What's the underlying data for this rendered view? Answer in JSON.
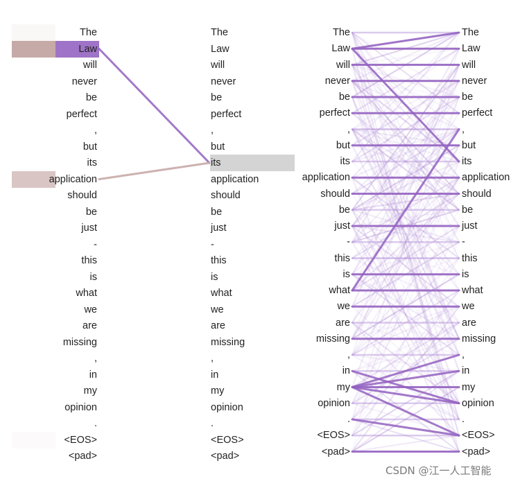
{
  "tokens": [
    "The",
    "Law",
    "will",
    "never",
    "be",
    "perfect",
    ",",
    "but",
    "its",
    "application",
    "should",
    "be",
    "just",
    "-",
    "this",
    "is",
    "what",
    "we",
    "are",
    "missing",
    ",",
    "in",
    "my",
    "opinion",
    ".",
    "<EOS>",
    "<pad>"
  ],
  "tokens_right_col": [
    "The",
    "Law",
    "will",
    "never",
    "be",
    "perfect",
    ",",
    "but",
    "its",
    "application",
    "should",
    "be",
    "just",
    "-",
    "this",
    "is",
    "what",
    "we",
    "are",
    "missing",
    ",",
    "in",
    "my",
    "opinion",
    ".",
    "<EOS>",
    "<pad>"
  ],
  "left_panel": {
    "query_index": 8,
    "left_weights": [
      0.05,
      0.55,
      0,
      0,
      0,
      0,
      0,
      0,
      0,
      0.35,
      0,
      0,
      0,
      0,
      0,
      0,
      0,
      0,
      0,
      0,
      0,
      0,
      0,
      0,
      0,
      0.03,
      0
    ],
    "right_weights": [
      0,
      1.0,
      0,
      0,
      0,
      0,
      0,
      0,
      0,
      0,
      0,
      0,
      0,
      0,
      0,
      0,
      0,
      0,
      0,
      0,
      0,
      0,
      0,
      0,
      0,
      0,
      0
    ],
    "links": [
      {
        "from": 1,
        "to": 8,
        "w": 0.9
      },
      {
        "from": 9,
        "to": 8,
        "w": 0.45
      }
    ]
  },
  "right_panel": {
    "strong_links": [
      [
        1,
        0
      ],
      [
        1,
        1
      ],
      [
        1,
        8
      ],
      [
        2,
        2
      ],
      [
        3,
        3
      ],
      [
        5,
        5
      ],
      [
        7,
        7
      ],
      [
        9,
        9
      ],
      [
        10,
        10
      ],
      [
        12,
        12
      ],
      [
        15,
        15
      ],
      [
        16,
        16
      ],
      [
        16,
        6
      ],
      [
        19,
        19
      ],
      [
        22,
        20
      ],
      [
        22,
        21
      ],
      [
        22,
        22
      ],
      [
        22,
        23
      ],
      [
        22,
        25
      ],
      [
        26,
        26
      ],
      [
        24,
        25
      ],
      [
        21,
        23
      ],
      [
        17,
        17
      ],
      [
        4,
        4
      ]
    ],
    "weak_link_count": 160
  },
  "colors": {
    "left_attn": "#c6aaa7",
    "right_attn": "#8e5bbd",
    "query_highlight": "#d4d4d4",
    "link_strong": "#9361c0",
    "link_mid": "#b08cd6",
    "link_pale": "#c6aaa7"
  },
  "watermark": "CSDN @江一人工智能"
}
